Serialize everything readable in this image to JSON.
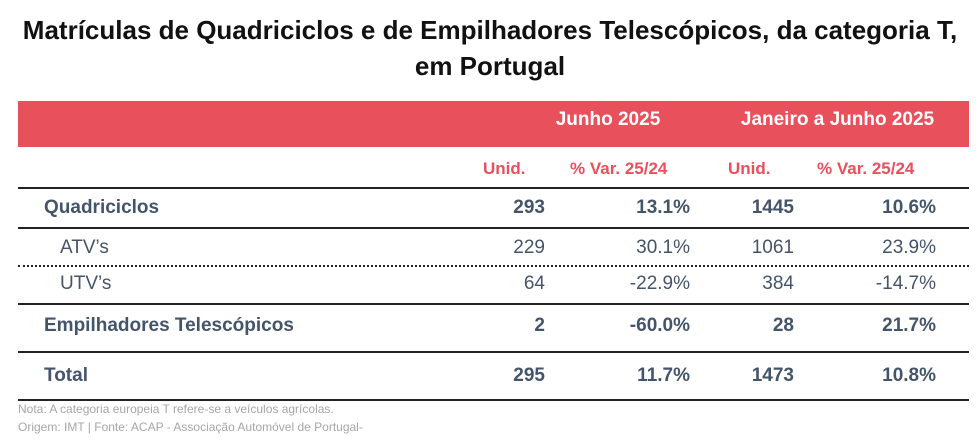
{
  "title": {
    "line1": "Matrículas de Quadriciclos e de Empilhadores Telescópicos, da categoria T,",
    "line2": "em Portugal"
  },
  "header": {
    "period1": "Junho 2025",
    "period2": "Janeiro a Junho 2025",
    "col_units": "Unid.",
    "col_var": "% Var. 25/24"
  },
  "rows": [
    {
      "label": "Quadriciclos",
      "u1": "293",
      "v1": "13.1%",
      "u2": "1445",
      "v2": "10.6%"
    },
    {
      "label": "ATV’s",
      "u1": "229",
      "v1": "30.1%",
      "u2": "1061",
      "v2": "23.9%"
    },
    {
      "label": "UTV’s",
      "u1": "64",
      "v1": "-22.9%",
      "u2": "384",
      "v2": "-14.7%"
    },
    {
      "label": "Empilhadores Telescópicos",
      "u1": "2",
      "v1": "-60.0%",
      "u2": "28",
      "v2": "21.7%"
    },
    {
      "label": "Total",
      "u1": "295",
      "v1": "11.7%",
      "u2": "1473",
      "v2": "10.8%"
    }
  ],
  "notes": {
    "note": "Nota: A categoria europeia T refere-se a veículos agrícolas.",
    "source": "Origem: IMT | Fonte: ACAP - Associação Automóvel de Portugal-"
  },
  "colors": {
    "accent": "#e8505b",
    "text": "#44546a",
    "note": "#a6a6a6"
  }
}
